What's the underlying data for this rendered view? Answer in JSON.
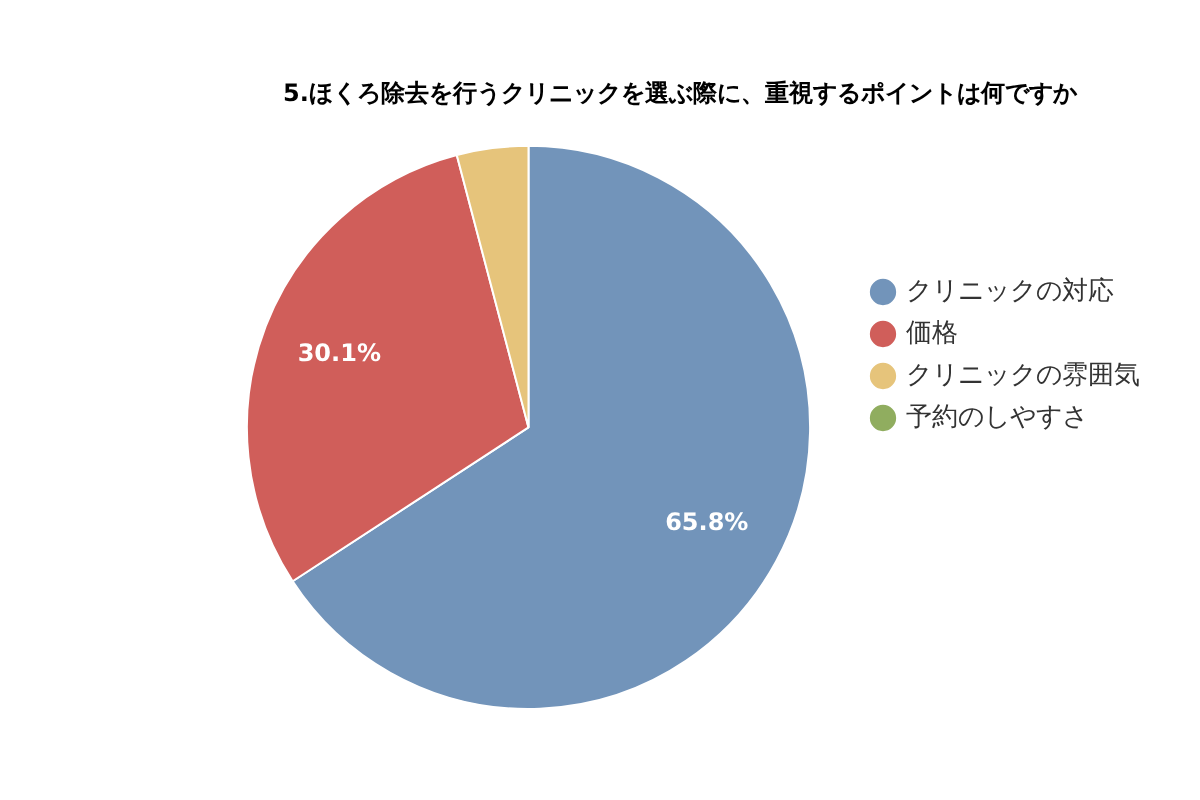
{
  "chart_data": {
    "type": "pie",
    "title": "5.ほくろ除去を行うクリニックを選ぶ際に、重視するポイントは何ですか",
    "categories": [
      "クリニックの対応",
      "価格",
      "クリニックの雰囲気",
      "予約のしやすさ"
    ],
    "values": [
      65.8,
      30.1,
      4.1,
      0
    ],
    "colors": [
      "#7294ba",
      "#d05e5a",
      "#e6c47b",
      "#90ad5f"
    ],
    "value_labels": [
      "65.8%",
      "30.1%",
      null,
      null
    ],
    "legend": "right"
  }
}
